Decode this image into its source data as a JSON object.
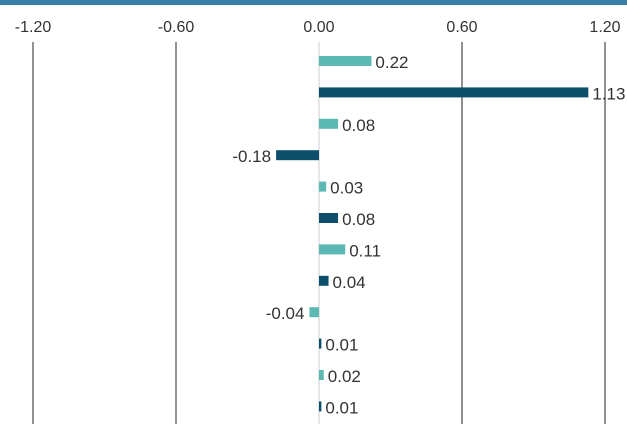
{
  "chart_data": {
    "type": "bar",
    "orientation": "horizontal",
    "xlim": [
      -1.2,
      1.2
    ],
    "ticks": [
      -1.2,
      -0.6,
      0.0,
      0.6,
      1.2
    ],
    "tick_labels": [
      "-1.20",
      "-0.60",
      "0.00",
      "0.60",
      "1.20"
    ],
    "grid": true,
    "values": [
      0.22,
      1.13,
      0.08,
      -0.18,
      0.03,
      0.08,
      0.11,
      0.04,
      -0.04,
      0.01,
      0.02,
      0.01
    ],
    "value_labels": [
      "0.22",
      "1.13",
      "0.08",
      "-0.18",
      "0.03",
      "0.08",
      "0.11",
      "0.04",
      "-0.04",
      "0.01",
      "0.02",
      "0.01"
    ],
    "colors": [
      "#5cb8b2",
      "#0d4f6b",
      "#5cb8b2",
      "#0d4f6b",
      "#5cb8b2",
      "#0d4f6b",
      "#5cb8b2",
      "#0d4f6b",
      "#5cb8b2",
      "#0d4f6b",
      "#5cb8b2",
      "#0d4f6b"
    ]
  },
  "style": {
    "top_rule_color": "#3a7fa8",
    "grid_color": "#222222",
    "zero_line_color": "#cccccc"
  }
}
